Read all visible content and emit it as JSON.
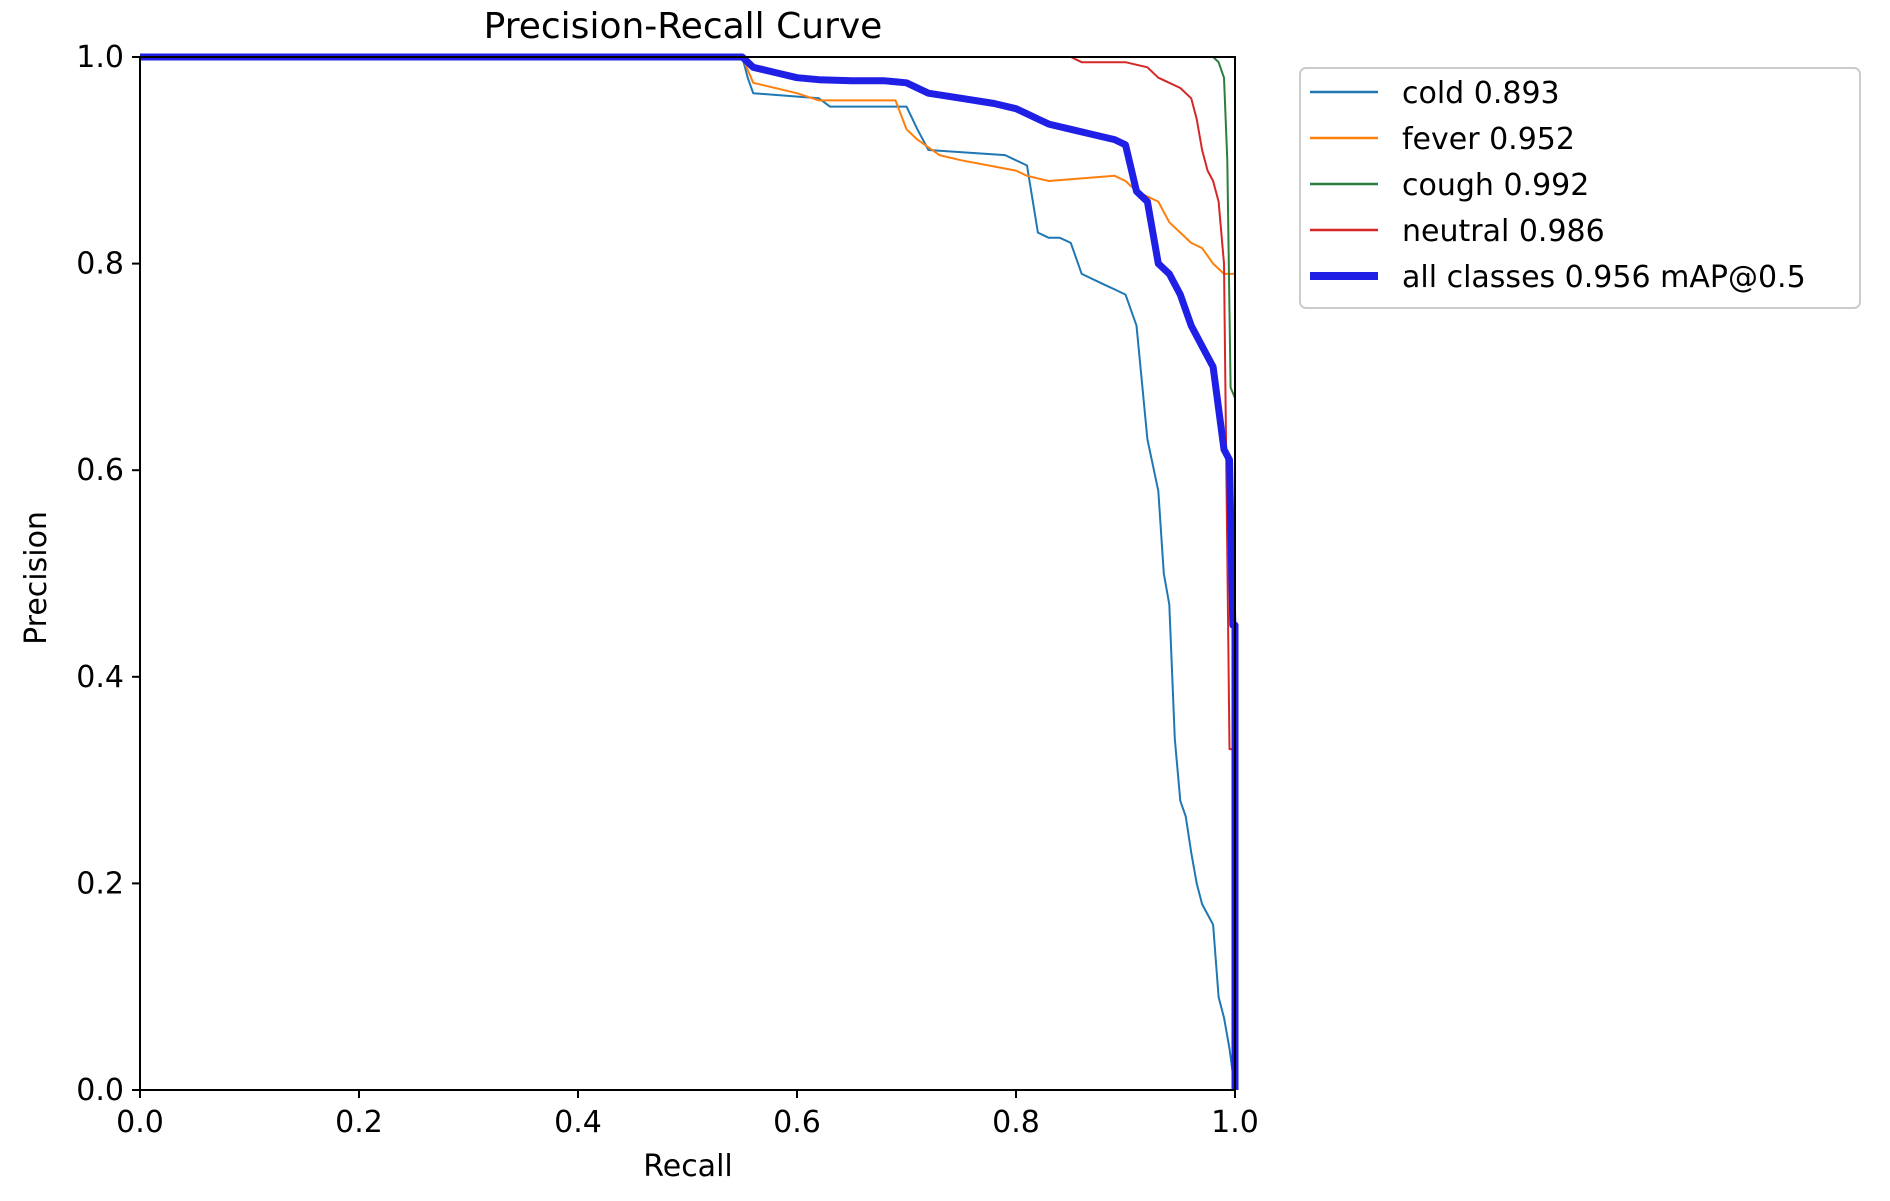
{
  "chart_data": {
    "type": "line",
    "title": "Precision-Recall Curve",
    "xlabel": "Recall",
    "ylabel": "Precision",
    "xlim": [
      0.0,
      1.0
    ],
    "ylim": [
      0.0,
      1.0
    ],
    "xticks": [
      "0.0",
      "0.2",
      "0.4",
      "0.6",
      "0.8",
      "1.0"
    ],
    "yticks": [
      "0.0",
      "0.2",
      "0.4",
      "0.6",
      "0.8",
      "1.0"
    ],
    "grid": false,
    "legend_position": "outside-top-right",
    "series": [
      {
        "name": "cold",
        "ap": "0.893",
        "legend_label": "cold 0.893",
        "color": "#1f77b4",
        "x": [
          0.0,
          0.55,
          0.555,
          0.56,
          0.62,
          0.63,
          0.7,
          0.71,
          0.72,
          0.79,
          0.8,
          0.81,
          0.82,
          0.83,
          0.84,
          0.85,
          0.86,
          0.88,
          0.89,
          0.9,
          0.91,
          0.92,
          0.93,
          0.935,
          0.94,
          0.945,
          0.95,
          0.955,
          0.96,
          0.965,
          0.97,
          0.975,
          0.98,
          0.985,
          0.99,
          0.995,
          1.0
        ],
        "y": [
          1.0,
          1.0,
          0.98,
          0.965,
          0.96,
          0.952,
          0.952,
          0.93,
          0.91,
          0.905,
          0.9,
          0.895,
          0.83,
          0.825,
          0.825,
          0.82,
          0.79,
          0.78,
          0.775,
          0.77,
          0.74,
          0.63,
          0.58,
          0.5,
          0.47,
          0.34,
          0.28,
          0.265,
          0.23,
          0.2,
          0.18,
          0.17,
          0.16,
          0.09,
          0.07,
          0.04,
          0.0
        ]
      },
      {
        "name": "fever",
        "ap": "0.952",
        "legend_label": "fever 0.952",
        "color": "#ff7f0e",
        "x": [
          0.0,
          0.55,
          0.56,
          0.6,
          0.62,
          0.69,
          0.7,
          0.71,
          0.73,
          0.75,
          0.8,
          0.81,
          0.83,
          0.89,
          0.9,
          0.91,
          0.93,
          0.94,
          0.95,
          0.96,
          0.97,
          0.98,
          0.99,
          1.0
        ],
        "y": [
          1.0,
          1.0,
          0.975,
          0.965,
          0.958,
          0.958,
          0.93,
          0.92,
          0.905,
          0.9,
          0.89,
          0.885,
          0.88,
          0.885,
          0.88,
          0.87,
          0.86,
          0.84,
          0.83,
          0.82,
          0.815,
          0.8,
          0.79,
          0.79
        ]
      },
      {
        "name": "cough",
        "ap": "0.992",
        "legend_label": "cough 0.992",
        "color": "#2d7d3c",
        "x": [
          0.0,
          0.85,
          0.95,
          0.97,
          0.98,
          0.985,
          0.99,
          0.993,
          0.996,
          1.0
        ],
        "y": [
          1.0,
          1.0,
          1.0,
          1.0,
          1.0,
          0.995,
          0.98,
          0.9,
          0.68,
          0.67
        ]
      },
      {
        "name": "neutral",
        "ap": "0.986",
        "legend_label": "neutral 0.986",
        "color": "#d62728",
        "x": [
          0.0,
          0.85,
          0.86,
          0.9,
          0.92,
          0.93,
          0.94,
          0.95,
          0.96,
          0.965,
          0.97,
          0.975,
          0.98,
          0.985,
          0.99,
          0.995,
          1.0
        ],
        "y": [
          1.0,
          1.0,
          0.995,
          0.995,
          0.99,
          0.98,
          0.975,
          0.97,
          0.96,
          0.94,
          0.91,
          0.89,
          0.88,
          0.86,
          0.8,
          0.33,
          0.33
        ]
      },
      {
        "name": "all classes",
        "ap": "0.956",
        "legend_label": "all classes 0.956 mAP@0.5",
        "color": "#1f1fe6",
        "x": [
          0.0,
          0.55,
          0.56,
          0.58,
          0.6,
          0.62,
          0.65,
          0.68,
          0.7,
          0.72,
          0.75,
          0.78,
          0.8,
          0.81,
          0.82,
          0.83,
          0.85,
          0.87,
          0.89,
          0.9,
          0.91,
          0.92,
          0.93,
          0.94,
          0.95,
          0.96,
          0.97,
          0.98,
          0.99,
          0.995,
          0.998,
          1.0,
          1.0
        ],
        "y": [
          1.0,
          1.0,
          0.99,
          0.985,
          0.98,
          0.978,
          0.977,
          0.977,
          0.975,
          0.965,
          0.96,
          0.955,
          0.95,
          0.945,
          0.94,
          0.935,
          0.93,
          0.925,
          0.92,
          0.915,
          0.87,
          0.86,
          0.8,
          0.79,
          0.77,
          0.74,
          0.72,
          0.7,
          0.62,
          0.61,
          0.45,
          0.45,
          0.0
        ]
      }
    ]
  }
}
